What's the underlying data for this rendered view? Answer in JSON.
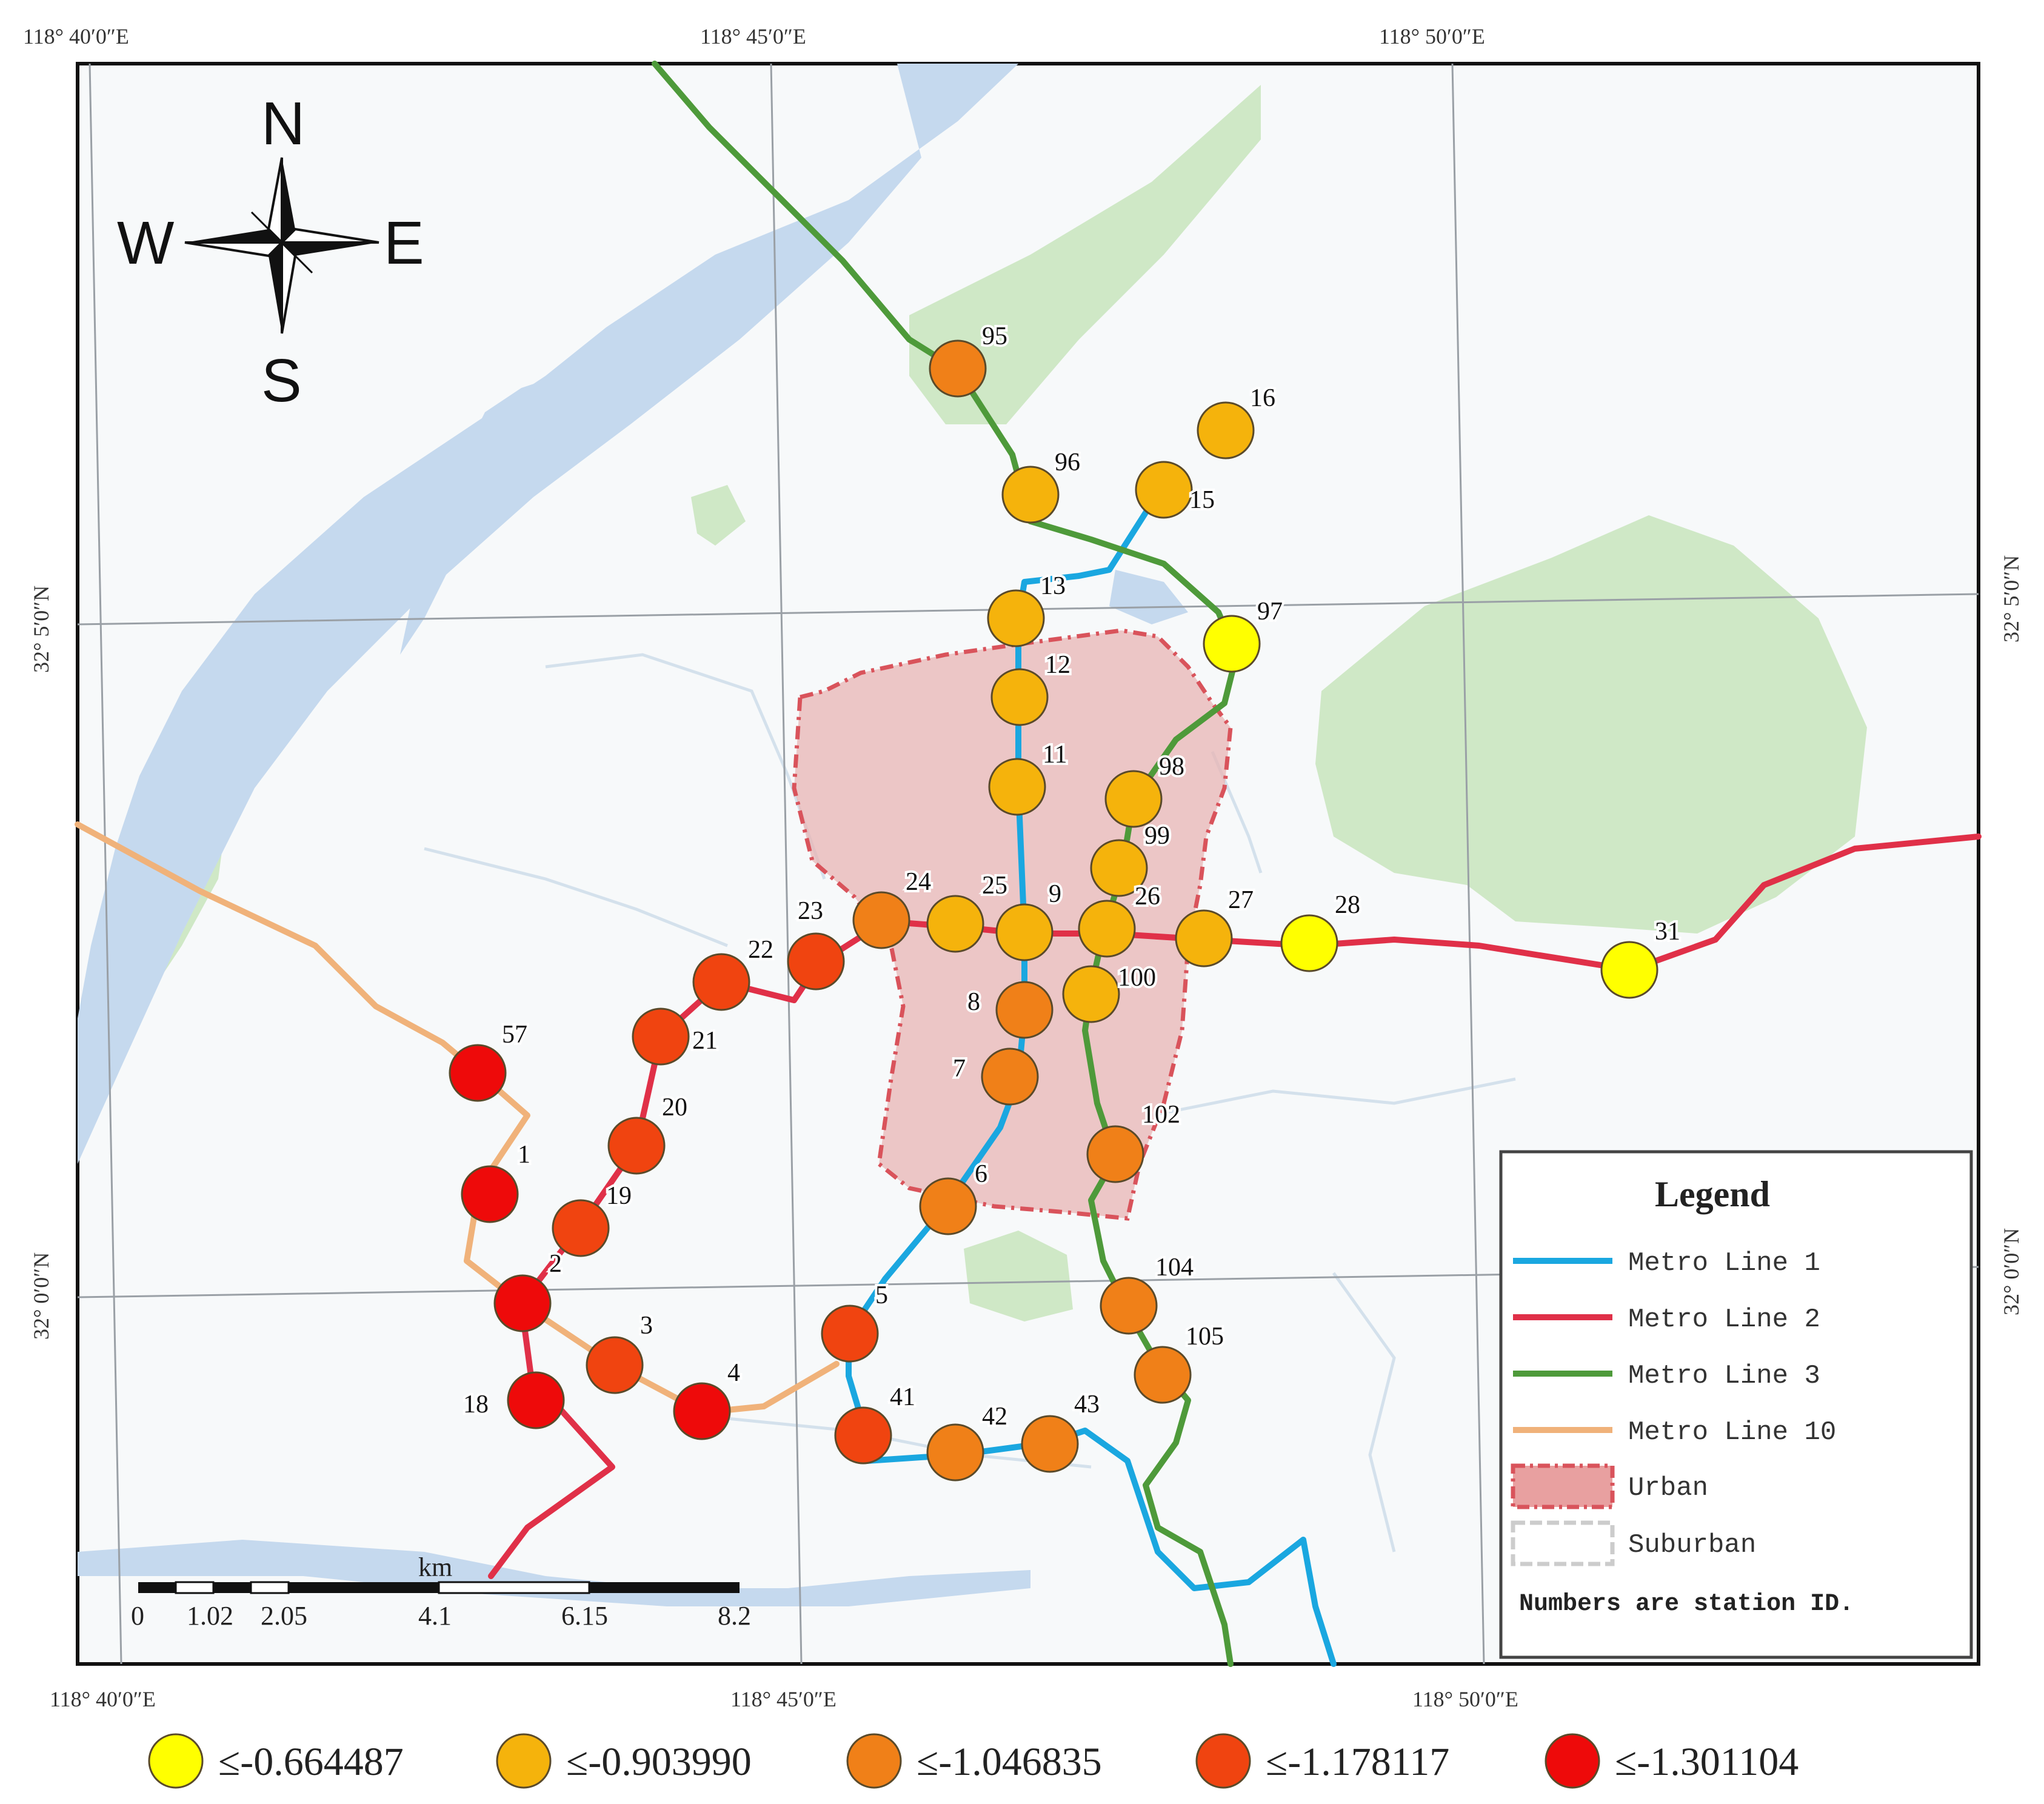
{
  "coordinates": {
    "top": [
      "118° 40′0″E",
      "118° 45′0″E",
      "118° 50′0″E"
    ],
    "bottom": [
      "118° 40′0″E",
      "118° 45′0″E",
      "118° 50′0″E"
    ],
    "left": [
      "32° 5′0″N",
      "32° 0′0″N"
    ],
    "right": [
      "32° 5′0″N",
      "32° 0′0″N"
    ]
  },
  "compass": {
    "n": "N",
    "s": "S",
    "e": "E",
    "w": "W"
  },
  "scale_bar": {
    "unit": "km",
    "ticks": [
      "0",
      "1.02",
      "2.05",
      "4.1",
      "6.15",
      "8.2"
    ]
  },
  "legend": {
    "title": "Legend",
    "items": [
      {
        "label": "Metro Line 1",
        "color": "#1aa7e0"
      },
      {
        "label": "Metro Line 2",
        "color": "#e03048"
      },
      {
        "label": "Metro Line 3",
        "color": "#4e9a3a"
      },
      {
        "label": "Metro Line 10",
        "color": "#f0b27a"
      },
      {
        "label": "Urban",
        "color": "#e8a0a0"
      },
      {
        "label": "Suburban",
        "color": "#cccccc"
      }
    ],
    "note": "Numbers are station ID."
  },
  "classes": [
    {
      "label": "≤-0.664487",
      "color": "#ffff00"
    },
    {
      "label": "≤-0.903990",
      "color": "#f5b30c"
    },
    {
      "label": "≤-1.046835",
      "color": "#f08018"
    },
    {
      "label": "≤-1.178117",
      "color": "#f04410"
    },
    {
      "label": "≤-1.301104",
      "color": "#ee0a0a"
    }
  ],
  "stations": [
    {
      "id": "95",
      "class": 2
    },
    {
      "id": "16",
      "class": 1
    },
    {
      "id": "96",
      "class": 1
    },
    {
      "id": "15",
      "class": 1
    },
    {
      "id": "13",
      "class": 1
    },
    {
      "id": "97",
      "class": 0
    },
    {
      "id": "12",
      "class": 1
    },
    {
      "id": "11",
      "class": 1
    },
    {
      "id": "98",
      "class": 1
    },
    {
      "id": "99",
      "class": 1
    },
    {
      "id": "24",
      "class": 2
    },
    {
      "id": "23",
      "class": 3
    },
    {
      "id": "25",
      "class": 1
    },
    {
      "id": "9",
      "class": 1
    },
    {
      "id": "26",
      "class": 1
    },
    {
      "id": "27",
      "class": 1
    },
    {
      "id": "28",
      "class": 0
    },
    {
      "id": "31",
      "class": 0
    },
    {
      "id": "22",
      "class": 3
    },
    {
      "id": "100",
      "class": 1
    },
    {
      "id": "8",
      "class": 2
    },
    {
      "id": "21",
      "class": 3
    },
    {
      "id": "57",
      "class": 4
    },
    {
      "id": "7",
      "class": 2
    },
    {
      "id": "20",
      "class": 3
    },
    {
      "id": "102",
      "class": 2
    },
    {
      "id": "1",
      "class": 4
    },
    {
      "id": "19",
      "class": 3
    },
    {
      "id": "6",
      "class": 2
    },
    {
      "id": "2",
      "class": 4
    },
    {
      "id": "104",
      "class": 2
    },
    {
      "id": "5",
      "class": 3
    },
    {
      "id": "3",
      "class": 3
    },
    {
      "id": "105",
      "class": 2
    },
    {
      "id": "18",
      "class": 4
    },
    {
      "id": "4",
      "class": 4
    },
    {
      "id": "41",
      "class": 3
    },
    {
      "id": "42",
      "class": 2
    },
    {
      "id": "43",
      "class": 2
    }
  ]
}
